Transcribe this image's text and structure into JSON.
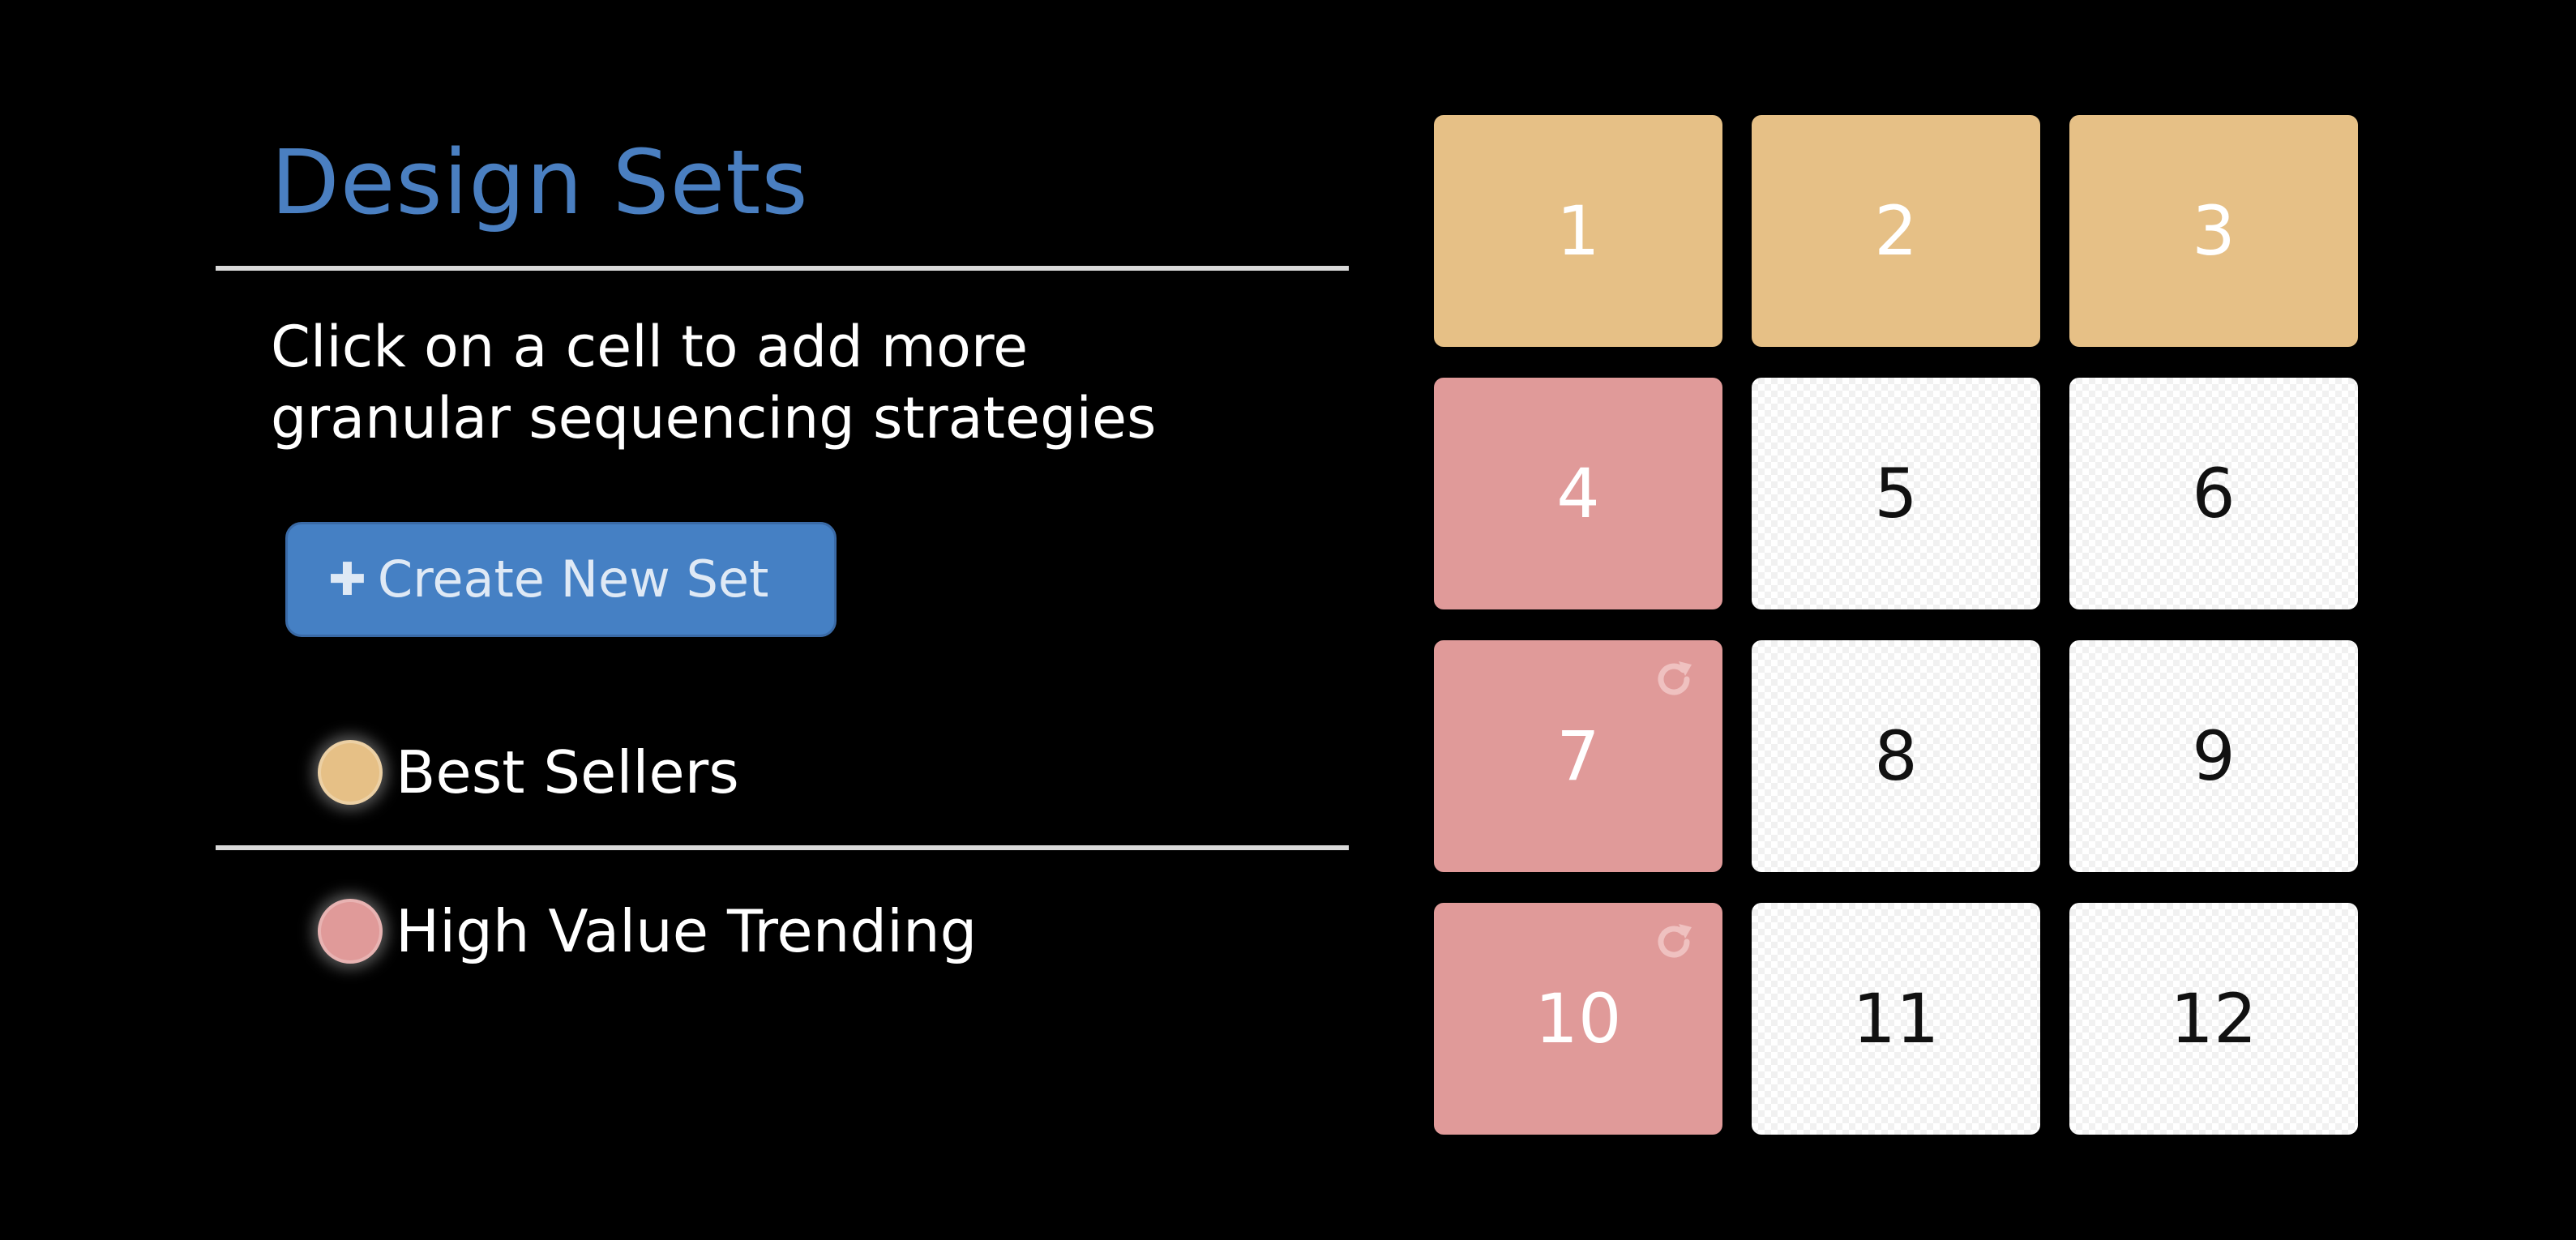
{
  "header": {
    "title": "Design Sets"
  },
  "instructions": {
    "line1": "Click on a cell to add more",
    "line2": "granular sequencing strategies"
  },
  "create_button": {
    "icon": "plus-icon",
    "label": "Create New Set"
  },
  "legend": [
    {
      "label": "Best Sellers",
      "color": "#e6c086"
    },
    {
      "label": "High Value Trending",
      "color": "#e09a99"
    }
  ],
  "colors": {
    "title": "#4a7fc1",
    "button": "#4580c4",
    "best_sellers": "#e6c086",
    "high_value_trending": "#e09a99",
    "empty_cell": "#ffffff",
    "background": "#000000"
  },
  "grid": {
    "cells": [
      {
        "number": "1",
        "set": "Best Sellers",
        "refresh": false
      },
      {
        "number": "2",
        "set": "Best Sellers",
        "refresh": false
      },
      {
        "number": "3",
        "set": "Best Sellers",
        "refresh": false
      },
      {
        "number": "4",
        "set": "High Value Trending",
        "refresh": false
      },
      {
        "number": "5",
        "set": "",
        "refresh": false
      },
      {
        "number": "6",
        "set": "",
        "refresh": false
      },
      {
        "number": "7",
        "set": "High Value Trending",
        "refresh": true
      },
      {
        "number": "8",
        "set": "",
        "refresh": false
      },
      {
        "number": "9",
        "set": "",
        "refresh": false
      },
      {
        "number": "10",
        "set": "High Value Trending",
        "refresh": true
      },
      {
        "number": "11",
        "set": "",
        "refresh": false
      },
      {
        "number": "12",
        "set": "",
        "refresh": false
      }
    ],
    "refresh_icon": "refresh-icon"
  }
}
